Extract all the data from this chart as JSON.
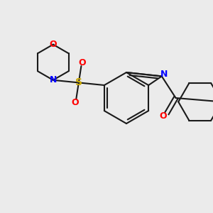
{
  "background_color": "#ebebeb",
  "bond_color": "#1a1a1a",
  "bond_lw": 1.5,
  "N_color": "#0000ff",
  "O_color": "#ff0000",
  "S_color": "#ccaa00",
  "font_size": 9,
  "xlim": [
    0,
    300
  ],
  "ylim": [
    0,
    300
  ]
}
